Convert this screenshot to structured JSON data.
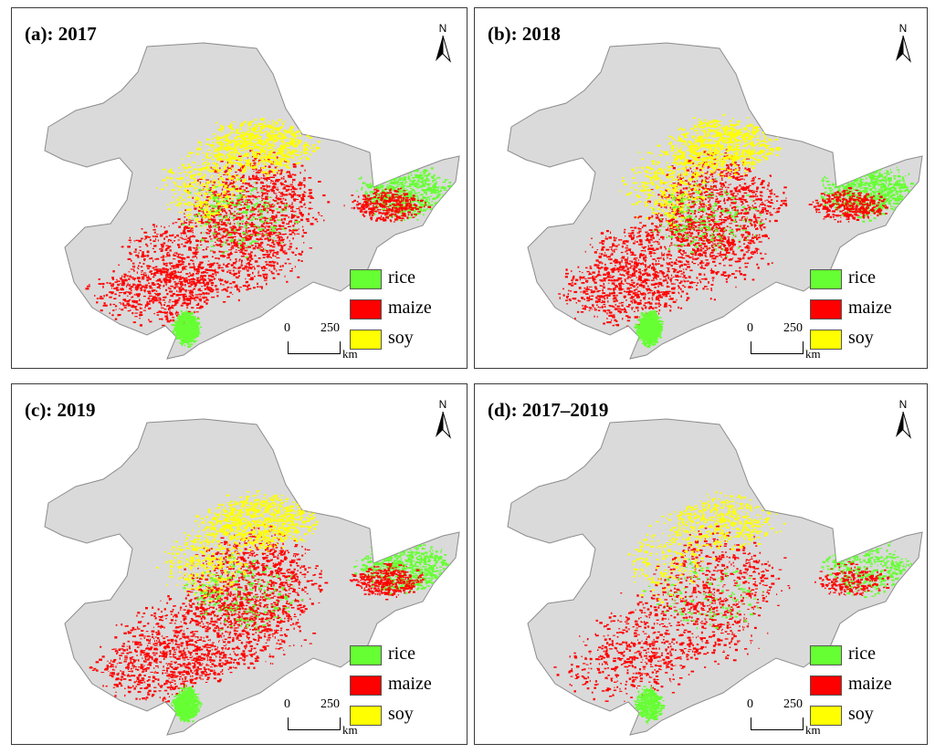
{
  "legend": [
    {
      "label": "rice",
      "color": "#66ff33"
    },
    {
      "label": "maize",
      "color": "#ff0000"
    },
    {
      "label": "soy",
      "color": "#ffff00"
    }
  ],
  "scale_bar": {
    "zero": "0",
    "max": "250",
    "unit": "km"
  },
  "north_label": "N",
  "panels": [
    {
      "title": "(a): 2017"
    },
    {
      "title": "(b): 2018"
    },
    {
      "title": "(c): 2019"
    },
    {
      "title": "(d): 2017–2019"
    }
  ],
  "colors": {
    "land": "#dadada",
    "border": "#8c8c8c",
    "rice": "#66ff33",
    "maize": "#ff0000",
    "soy": "#ffff00"
  }
}
